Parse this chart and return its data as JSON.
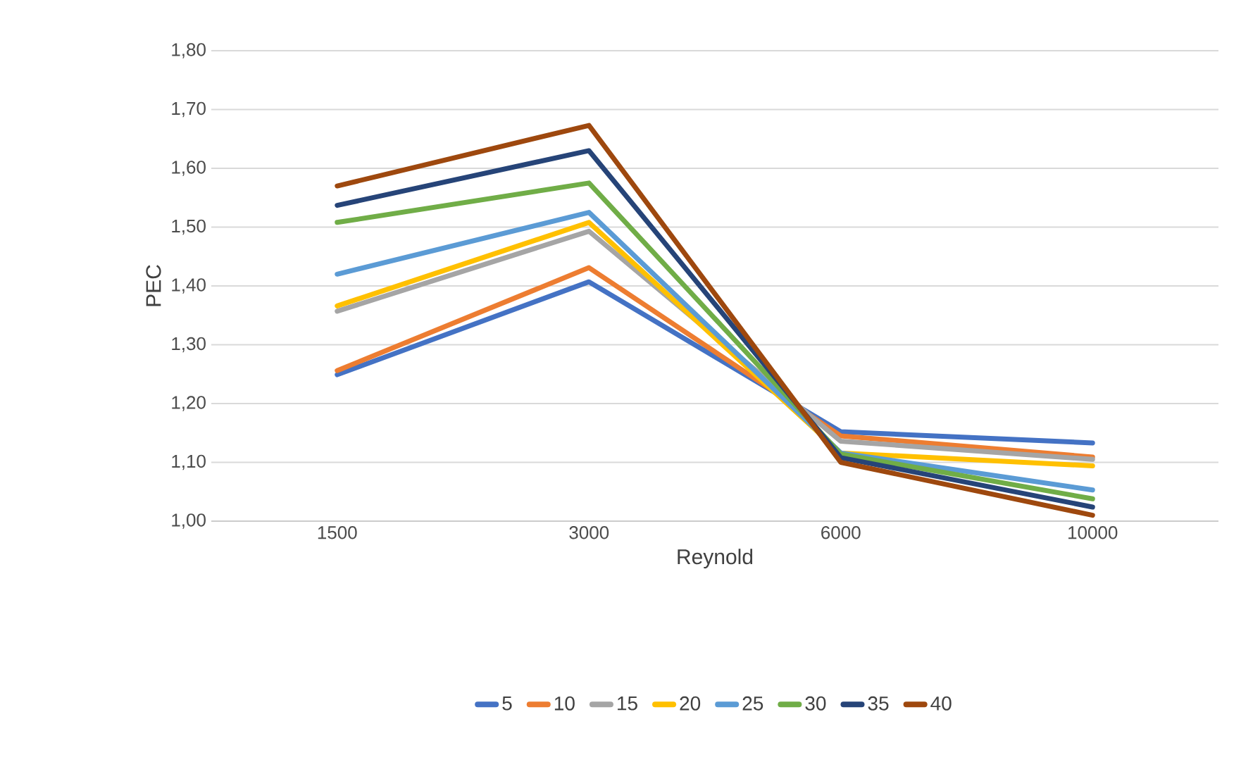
{
  "chart_data": {
    "type": "line",
    "xlabel": "Reynold",
    "ylabel": "PEC",
    "categories": [
      "1500",
      "3000",
      "6000",
      "10000"
    ],
    "ylim": [
      1.0,
      1.8
    ],
    "yticks": [
      {
        "value": 1.0,
        "label": "1,00"
      },
      {
        "value": 1.1,
        "label": "1,10"
      },
      {
        "value": 1.2,
        "label": "1,20"
      },
      {
        "value": 1.3,
        "label": "1,30"
      },
      {
        "value": 1.4,
        "label": "1,40"
      },
      {
        "value": 1.5,
        "label": "1,50"
      },
      {
        "value": 1.6,
        "label": "1,60"
      },
      {
        "value": 1.7,
        "label": "1,70"
      },
      {
        "value": 1.8,
        "label": "1,80"
      }
    ],
    "grid": "y",
    "legend": "bottom",
    "marker": "none",
    "line_style": "solid",
    "series": [
      {
        "name": "5",
        "color": "#4472c4",
        "values": [
          1.249,
          1.407,
          1.152,
          1.133
        ]
      },
      {
        "name": "10",
        "color": "#ed7d31",
        "values": [
          1.256,
          1.431,
          1.145,
          1.109
        ]
      },
      {
        "name": "15",
        "color": "#a5a5a5",
        "values": [
          1.357,
          1.493,
          1.136,
          1.105
        ]
      },
      {
        "name": "20",
        "color": "#ffc000",
        "values": [
          1.366,
          1.508,
          1.116,
          1.094
        ]
      },
      {
        "name": "25",
        "color": "#5b9bd5",
        "values": [
          1.42,
          1.525,
          1.116,
          1.053
        ]
      },
      {
        "name": "30",
        "color": "#70ad47",
        "values": [
          1.508,
          1.575,
          1.114,
          1.038
        ]
      },
      {
        "name": "35",
        "color": "#264478",
        "values": [
          1.537,
          1.63,
          1.108,
          1.024
        ]
      },
      {
        "name": "40",
        "color": "#9e480e",
        "values": [
          1.57,
          1.673,
          1.1,
          1.01
        ]
      }
    ]
  }
}
